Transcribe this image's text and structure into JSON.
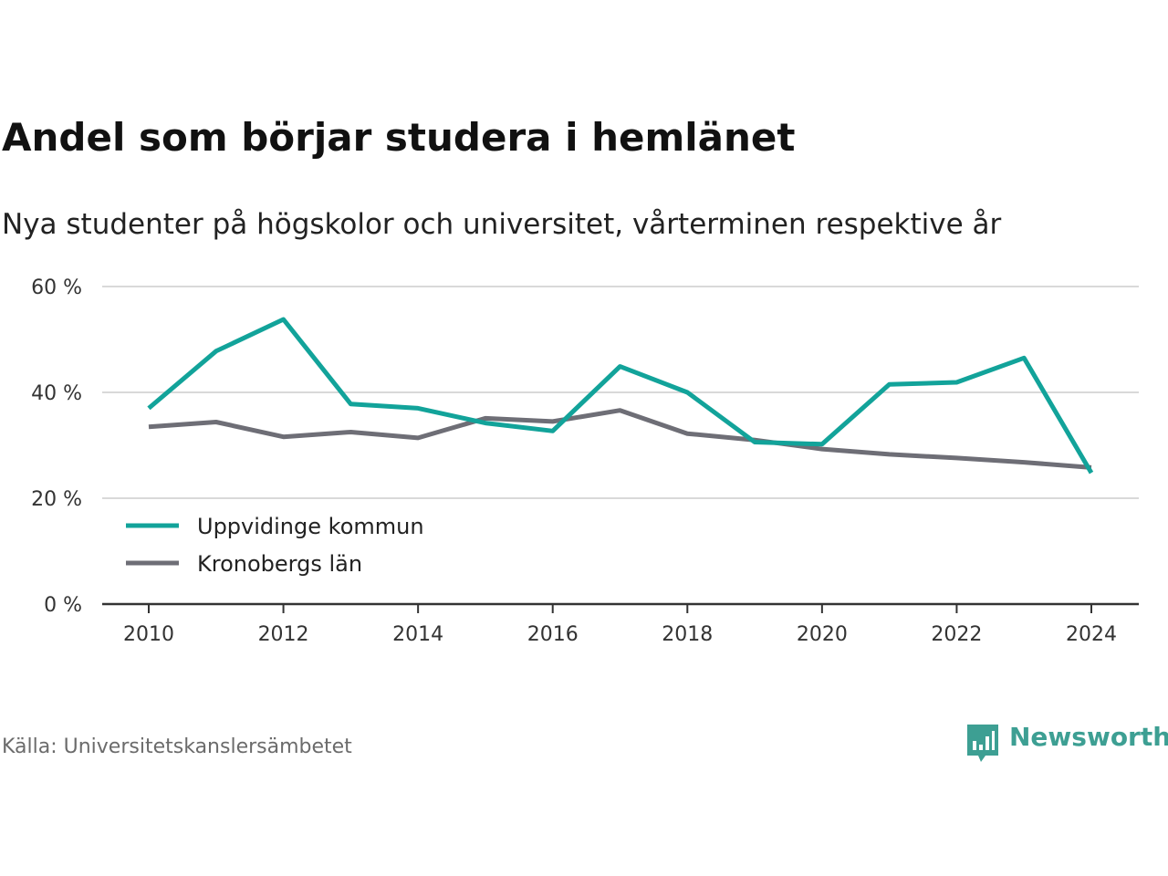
{
  "title": "Andel som börjar studera i hemlänet",
  "subtitle": "Nya studenter på högskolor och universitet, vårterminen respektive år",
  "source": "Källa: Universitetskanslersämbetet",
  "brand": {
    "name": "Newsworthy",
    "icon": "newsworthy-logo-icon",
    "color": "#3d9f93"
  },
  "chart_data": {
    "type": "line",
    "title": "Andel som börjar studera i hemlänet",
    "subtitle": "Nya studenter på högskolor och universitet, vårterminen respektive år",
    "x": [
      2010,
      2011,
      2012,
      2013,
      2014,
      2015,
      2016,
      2017,
      2018,
      2019,
      2020,
      2021,
      2022,
      2023,
      2024
    ],
    "x_ticks": [
      "2010",
      "2012",
      "2014",
      "2016",
      "2018",
      "2020",
      "2022",
      "2024"
    ],
    "y_ticks": [
      "0 %",
      "20 %",
      "40 %",
      "60 %"
    ],
    "ylim": [
      0,
      60
    ],
    "grid": true,
    "legend_position": "bottom-left",
    "series": [
      {
        "name": "Uppvidinge kommun",
        "color": "#12a39a",
        "values": [
          37,
          47.8,
          53.8,
          37.8,
          37,
          34.2,
          32.7,
          44.9,
          40,
          30.6,
          30.2,
          41.5,
          41.9,
          46.5,
          24.8
        ]
      },
      {
        "name": "Kronobergs län",
        "color": "#6e6e76",
        "values": [
          33.5,
          34.4,
          31.6,
          32.5,
          31.4,
          35.1,
          34.5,
          36.6,
          32.2,
          31,
          29.3,
          28.3,
          27.6,
          26.8,
          25.8
        ]
      }
    ]
  }
}
